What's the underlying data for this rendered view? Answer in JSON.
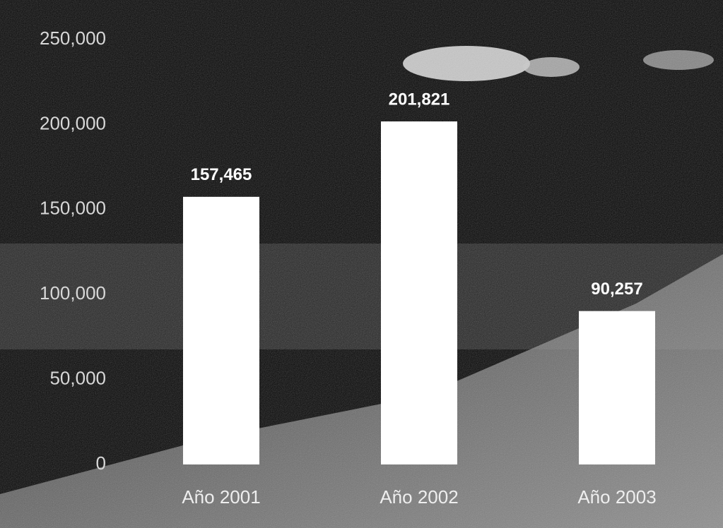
{
  "chart_data": {
    "type": "bar",
    "categories": [
      "Año 2001",
      "Año 2002",
      "Año 2003"
    ],
    "values": [
      157465,
      201821,
      90257
    ],
    "value_labels": [
      "157,465",
      "201,821",
      "90,257"
    ],
    "color": "#ffffff",
    "ylim": [
      0,
      250000
    ],
    "yticks": [
      0,
      {
        "value": 50000,
        "label": "50,000"
      },
      {
        "value": 100000,
        "label": "100,000"
      },
      {
        "value": 150000,
        "label": "150,000"
      },
      {
        "value": 200000,
        "label": "200,000"
      },
      {
        "value": 250000,
        "label": "250,000"
      }
    ]
  }
}
